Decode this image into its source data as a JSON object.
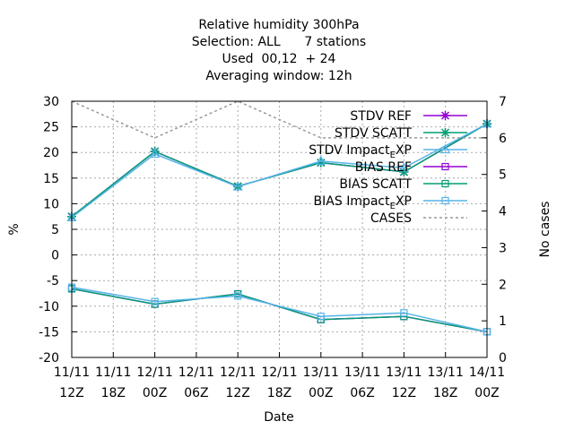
{
  "chart_data": {
    "type": "line",
    "title_lines": [
      "Relative humidity 300hPa",
      "Selection: ALL      7 stations",
      "Used  00,12  + 24",
      "Averaging window: 12h"
    ],
    "xlabel": "Date",
    "ylabel": "%",
    "y2label": "No cases",
    "x_ticks": [
      {
        "x": 0,
        "line1": "11/11",
        "line2": "12Z"
      },
      {
        "x": 6,
        "line1": "11/11",
        "line2": "18Z"
      },
      {
        "x": 12,
        "line1": "12/11",
        "line2": "00Z"
      },
      {
        "x": 18,
        "line1": "12/11",
        "line2": "06Z"
      },
      {
        "x": 24,
        "line1": "12/11",
        "line2": "12Z"
      },
      {
        "x": 30,
        "line1": "12/11",
        "line2": "18Z"
      },
      {
        "x": 36,
        "line1": "13/11",
        "line2": "00Z"
      },
      {
        "x": 42,
        "line1": "13/11",
        "line2": "06Z"
      },
      {
        "x": 48,
        "line1": "13/11",
        "line2": "12Z"
      },
      {
        "x": 54,
        "line1": "13/11",
        "line2": "18Z"
      },
      {
        "x": 60,
        "line1": "14/11",
        "line2": "00Z"
      }
    ],
    "xlim": [
      0,
      60
    ],
    "ylim": [
      -20,
      30
    ],
    "y_ticks": [
      -20,
      -15,
      -10,
      -5,
      0,
      5,
      10,
      15,
      20,
      25,
      30
    ],
    "y2lim": [
      0,
      7
    ],
    "y2_ticks": [
      0,
      1,
      2,
      3,
      4,
      5,
      6,
      7
    ],
    "grid": true,
    "legend_position": "top-right",
    "series": [
      {
        "name": "STDV REF",
        "color": "#9400d3",
        "marker": "star",
        "axis": "y1",
        "dash": "",
        "x": [
          0,
          12,
          24,
          36,
          48,
          60
        ],
        "values": [
          7.5,
          20.2,
          13.4,
          18.0,
          16.2,
          25.6
        ]
      },
      {
        "name": "STDV SCATT",
        "color": "#009e73",
        "marker": "star",
        "axis": "y1",
        "dash": "",
        "x": [
          0,
          12,
          24,
          36,
          48,
          60
        ],
        "values": [
          7.5,
          20.2,
          13.4,
          18.0,
          16.2,
          25.6
        ]
      },
      {
        "name": "STDV Impact_EXP",
        "color": "#56b4e9",
        "marker": "triangle",
        "axis": "y1",
        "dash": "",
        "x": [
          0,
          12,
          24,
          36,
          48,
          60
        ],
        "values": [
          7.3,
          19.7,
          13.3,
          18.3,
          17.0,
          25.6
        ]
      },
      {
        "name": "BIAS REF",
        "color": "#9400d3",
        "marker": "square",
        "axis": "y1",
        "dash": "",
        "x": [
          0,
          12,
          24,
          36,
          48,
          60
        ],
        "values": [
          -6.6,
          -9.6,
          -7.6,
          -12.6,
          -12.0,
          -15.0
        ]
      },
      {
        "name": "BIAS SCATT",
        "color": "#009e73",
        "marker": "square",
        "axis": "y1",
        "dash": "",
        "x": [
          0,
          12,
          24,
          36,
          48,
          60
        ],
        "values": [
          -6.6,
          -9.6,
          -7.6,
          -12.6,
          -12.0,
          -15.0
        ]
      },
      {
        "name": "BIAS Impact_EXP",
        "color": "#56b4e9",
        "marker": "square",
        "axis": "y1",
        "dash": "",
        "x": [
          0,
          12,
          24,
          36,
          48,
          60
        ],
        "values": [
          -6.3,
          -9.1,
          -8.0,
          -12.0,
          -11.3,
          -15.0
        ]
      },
      {
        "name": "CASES",
        "color": "#999999",
        "marker": "none",
        "axis": "y2",
        "dash": "3,3",
        "x": [
          0,
          12,
          24,
          36,
          48,
          60
        ],
        "values": [
          7,
          6,
          7,
          6,
          6,
          6
        ]
      }
    ],
    "legend": [
      {
        "main": "STDV REF",
        "sub": "",
        "after": ""
      },
      {
        "main": "STDV SCATT",
        "sub": "",
        "after": ""
      },
      {
        "main": "STDV Impact",
        "sub": "E",
        "after": "XP"
      },
      {
        "main": "BIAS REF",
        "sub": "",
        "after": ""
      },
      {
        "main": "BIAS SCATT",
        "sub": "",
        "after": ""
      },
      {
        "main": "BIAS Impact",
        "sub": "E",
        "after": "XP"
      },
      {
        "main": "CASES",
        "sub": "",
        "after": ""
      }
    ]
  }
}
